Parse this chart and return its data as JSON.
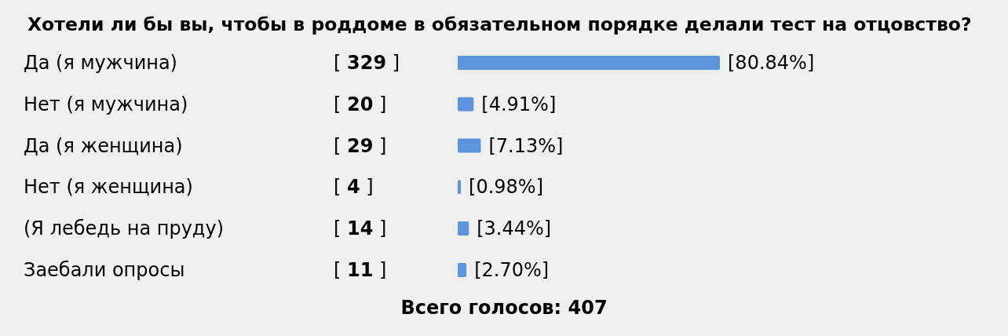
{
  "chart_data": {
    "type": "bar",
    "orientation": "horizontal",
    "title": "Хотели ли бы вы, чтобы в роддоме в обязательном порядке делали тест на отцовство?",
    "categories": [
      "Да (я мужчина)",
      "Нет (я мужчина)",
      "Да (я женщина)",
      "Нет (я женщина)",
      "(Я лебедь на пруду)",
      "Заебали опросы"
    ],
    "values": [
      80.84,
      4.91,
      7.13,
      0.98,
      3.44,
      2.7
    ],
    "value_labels": [
      "[80.84%]",
      "[4.91%]",
      "[7.13%]",
      "[0.98%]",
      "[3.44%]",
      "[2.70%]"
    ],
    "color": "#5e94dc",
    "annotations": [
      "[ 329 ]",
      "[ 20 ]",
      "[ 29 ]",
      "[ 4 ]",
      "[ 14 ]",
      "[ 11 ]",
      "Всего голосов: 407"
    ]
  }
}
